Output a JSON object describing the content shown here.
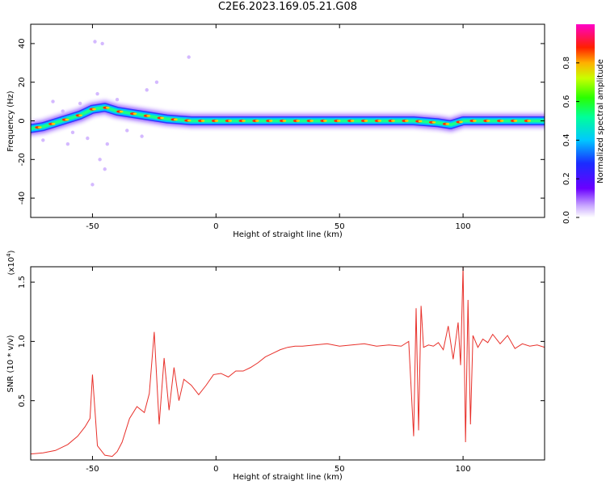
{
  "title": "C2E6.2023.169.05.21.G08",
  "chart_data": [
    {
      "type": "heatmap",
      "xlabel": "Height of straight line (km)",
      "ylabel": "Frequency (Hz)",
      "xlim": [
        -75,
        133
      ],
      "ylim": [
        -50,
        50
      ],
      "xticks": [
        -50,
        0,
        50,
        100
      ],
      "yticks": [
        -40,
        -20,
        0,
        20,
        40
      ],
      "grid": false,
      "colorbar": {
        "label": "Normalized spectral amplitude",
        "range": [
          0,
          1
        ],
        "ticks": [
          0.0,
          0.2,
          0.4,
          0.6,
          0.8
        ],
        "tick_labels": [
          "0.0",
          "0.2",
          "0.4",
          "0.6",
          "0.8"
        ],
        "colormap": "rainbow (white-violet-blue-cyan-green-yellow-red-magenta)"
      },
      "ridge": {
        "x": [
          -75,
          -70,
          -65,
          -60,
          -55,
          -50,
          -45,
          -40,
          -35,
          -30,
          -25,
          -20,
          -15,
          -10,
          0,
          10,
          30,
          50,
          70,
          80,
          90,
          95,
          100,
          110,
          120,
          133
        ],
        "freq": [
          -4,
          -3,
          -1,
          1,
          3,
          6,
          7,
          5,
          4,
          3,
          2,
          1,
          0.5,
          0,
          0,
          0,
          0,
          0,
          0,
          0,
          -1,
          -2,
          0,
          0,
          0,
          0
        ]
      }
    },
    {
      "type": "line",
      "xlabel": "Height of straight line (km)",
      "ylabel": "SNR (10 * v/v)",
      "multiplier": "(x10",
      "multiplier_exp": "4",
      "xlim": [
        -75,
        133
      ],
      "ylim": [
        0,
        16300
      ],
      "xticks": [
        -50,
        0,
        50,
        100
      ],
      "yticks": [
        5000,
        10000,
        15000
      ],
      "ytick_labels": [
        "0.5",
        "1.0",
        "1.5"
      ],
      "grid": false,
      "series": [
        {
          "color": "#e8302a",
          "x": [
            -75,
            -70,
            -65,
            -60,
            -56,
            -53,
            -51,
            -50,
            -48,
            -45,
            -42,
            -40,
            -38,
            -35,
            -32,
            -29,
            -27,
            -25,
            -23,
            -21,
            -19,
            -17,
            -15,
            -13,
            -10,
            -7,
            -4,
            -1,
            2,
            5,
            8,
            11,
            14,
            17,
            20,
            23,
            26,
            29,
            32,
            35,
            40,
            45,
            50,
            55,
            60,
            65,
            70,
            75,
            78,
            80,
            81,
            82,
            83,
            84,
            86,
            88,
            90,
            92,
            94,
            96,
            98,
            99,
            100,
            101,
            102,
            103,
            104,
            106,
            108,
            110,
            112,
            115,
            118,
            121,
            124,
            127,
            130,
            133
          ],
          "y": [
            500,
            600,
            800,
            1300,
            2000,
            2800,
            3500,
            7200,
            1200,
            400,
            300,
            700,
            1500,
            3500,
            4500,
            4000,
            5600,
            10800,
            3000,
            8600,
            4200,
            7800,
            5000,
            6800,
            6300,
            5500,
            6300,
            7200,
            7300,
            7000,
            7500,
            7500,
            7800,
            8200,
            8700,
            9000,
            9300,
            9500,
            9600,
            9600,
            9700,
            9800,
            9600,
            9700,
            9800,
            9600,
            9700,
            9600,
            10000,
            2000,
            12800,
            2500,
            13000,
            9500,
            9700,
            9600,
            9900,
            9300,
            11300,
            8500,
            11600,
            8000,
            16300,
            1500,
            13500,
            3000,
            10500,
            9500,
            10200,
            9900,
            10600,
            9800,
            10500,
            9400,
            9800,
            9600,
            9700,
            9500
          ]
        }
      ]
    }
  ]
}
